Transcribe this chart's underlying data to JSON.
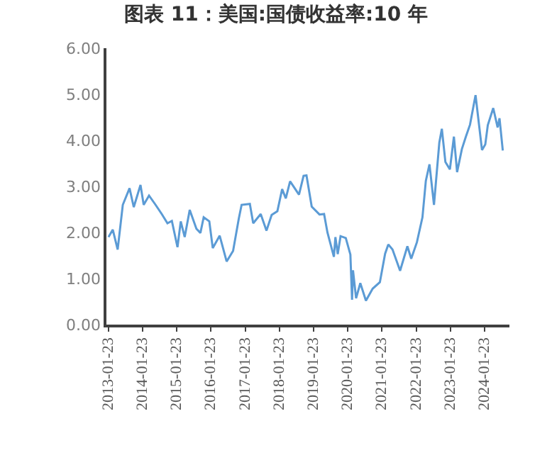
{
  "chart_data": {
    "type": "line",
    "title": "图表 11：美国:国债收益率:10 年",
    "x": [
      "2013-01-23",
      "2013-03-10",
      "2013-05-01",
      "2013-06-25",
      "2013-09-05",
      "2013-10-20",
      "2013-12-31",
      "2014-02-03",
      "2014-04-01",
      "2014-06-10",
      "2014-08-15",
      "2014-10-15",
      "2014-12-01",
      "2015-01-30",
      "2015-03-06",
      "2015-04-17",
      "2015-06-10",
      "2015-08-20",
      "2015-10-02",
      "2015-11-06",
      "2016-01-05",
      "2016-02-11",
      "2016-04-25",
      "2016-07-08",
      "2016-09-15",
      "2016-11-15",
      "2016-12-15",
      "2017-03-13",
      "2017-04-18",
      "2017-07-07",
      "2017-09-07",
      "2017-11-01",
      "2018-01-01",
      "2018-02-21",
      "2018-04-01",
      "2018-05-17",
      "2018-08-20",
      "2018-10-08",
      "2018-11-08",
      "2019-01-03",
      "2019-03-27",
      "2019-05-15",
      "2019-06-20",
      "2019-08-28",
      "2019-09-13",
      "2019-10-08",
      "2019-11-07",
      "2020-01-02",
      "2020-02-20",
      "2020-03-09",
      "2020-03-19",
      "2020-04-21",
      "2020-06-05",
      "2020-08-04",
      "2020-10-15",
      "2020-12-31",
      "2021-02-25",
      "2021-03-31",
      "2021-05-15",
      "2021-08-04",
      "2021-10-21",
      "2021-12-01",
      "2022-01-31",
      "2022-03-31",
      "2022-05-06",
      "2022-06-14",
      "2022-08-01",
      "2022-09-27",
      "2022-10-24",
      "2022-12-01",
      "2023-01-18",
      "2023-03-02",
      "2023-04-05",
      "2023-05-26",
      "2023-07-06",
      "2023-08-21",
      "2023-10-19",
      "2023-12-27",
      "2024-01-31",
      "2024-02-27",
      "2024-04-25",
      "2024-06-11",
      "2024-07-01",
      "2024-08-05"
    ],
    "series": [
      {
        "color": "#5b9bd5",
        "values": [
          1.9,
          2.06,
          1.63,
          2.6,
          2.96,
          2.55,
          3.03,
          2.6,
          2.8,
          2.6,
          2.4,
          2.2,
          2.25,
          1.68,
          2.24,
          1.9,
          2.49,
          2.08,
          1.99,
          2.33,
          2.24,
          1.66,
          1.93,
          1.37,
          1.6,
          2.3,
          2.6,
          2.62,
          2.2,
          2.4,
          2.04,
          2.38,
          2.46,
          2.94,
          2.74,
          3.11,
          2.82,
          3.23,
          3.24,
          2.56,
          2.39,
          2.4,
          2.0,
          1.47,
          1.9,
          1.53,
          1.92,
          1.88,
          1.52,
          0.54,
          1.18,
          0.57,
          0.9,
          0.52,
          0.78,
          0.92,
          1.54,
          1.74,
          1.63,
          1.17,
          1.7,
          1.43,
          1.79,
          2.33,
          3.12,
          3.48,
          2.6,
          3.95,
          4.25,
          3.53,
          3.37,
          4.08,
          3.31,
          3.81,
          4.07,
          4.34,
          4.98,
          3.79,
          3.91,
          4.33,
          4.7,
          4.28,
          4.48,
          3.78
        ]
      }
    ],
    "ylim": [
      0,
      6
    ],
    "yticks": [
      {
        "value": 0,
        "label": "0.00"
      },
      {
        "value": 1,
        "label": "1.00"
      },
      {
        "value": 2,
        "label": "2.00"
      },
      {
        "value": 3,
        "label": "3.00"
      },
      {
        "value": 4,
        "label": "4.00"
      },
      {
        "value": 5,
        "label": "5.00"
      },
      {
        "value": 6,
        "label": "6.00"
      }
    ],
    "xlim": [
      "2013-01-01",
      "2024-10-15"
    ],
    "xticks": [
      "2013-01-23",
      "2014-01-23",
      "2015-01-23",
      "2016-01-23",
      "2017-01-23",
      "2018-01-23",
      "2019-01-23",
      "2020-01-23",
      "2021-01-23",
      "2022-01-23",
      "2023-01-23",
      "2024-01-23"
    ],
    "grid": false,
    "marker": "none",
    "line_style": "solid"
  }
}
